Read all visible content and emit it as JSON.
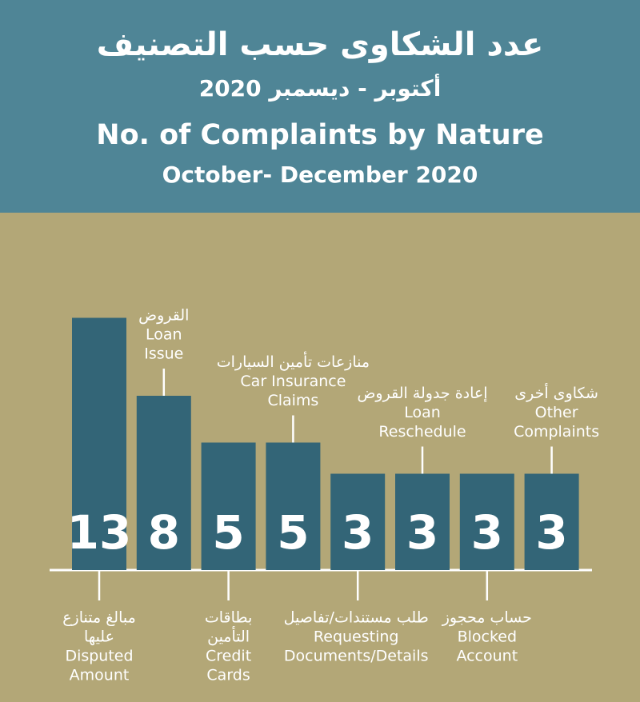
{
  "chart_data": {
    "type": "bar",
    "title_ar": "عدد الشكاوى حسب التصنيف",
    "subtitle_ar": "أكتوبر - ديسمبر 2020",
    "title": "No. of Complaints by Nature",
    "subtitle": "October- December 2020",
    "categories": [
      {
        "ar": [
          "مبالغ متنازع",
          "عليها"
        ],
        "en": [
          "Disputed",
          "Amount"
        ]
      },
      {
        "ar": [
          "القروض"
        ],
        "en": [
          "Loan",
          "Issue"
        ]
      },
      {
        "ar": [
          "بطاقات",
          "التأمين"
        ],
        "en": [
          "Credit",
          "Cards"
        ]
      },
      {
        "ar": [
          "منازعات تأمين السيارات"
        ],
        "en": [
          "Car Insurance",
          "Claims"
        ]
      },
      {
        "ar": [
          "طلب مستندات/تفاصيل"
        ],
        "en": [
          "Requesting",
          "Documents/Details"
        ]
      },
      {
        "ar": [
          "إعادة جدولة القروض"
        ],
        "en": [
          "Loan",
          "Reschedule"
        ]
      },
      {
        "ar": [
          "حساب محجوز"
        ],
        "en": [
          "Blocked",
          "Account"
        ]
      },
      {
        "ar": [
          "شكاوى أخرى"
        ],
        "en": [
          "Other",
          "Complaints"
        ]
      }
    ],
    "values": [
      13,
      8,
      5,
      5,
      3,
      3,
      3,
      3
    ],
    "color": "#336577"
  }
}
